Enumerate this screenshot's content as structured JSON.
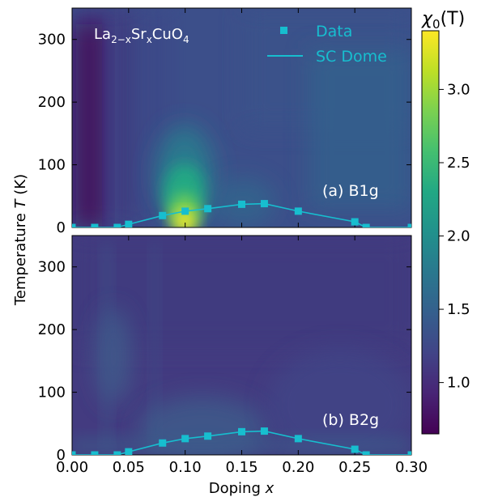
{
  "chart_data": {
    "type": "heatmap",
    "xlabel_text": "Doping ",
    "xlabel_var": "x",
    "ylabel_text": "Temperature ",
    "ylabel_var": "T",
    "ylabel_unit": " (K)",
    "xlim": [
      0.0,
      0.3
    ],
    "ylim": [
      0,
      350
    ],
    "x_ticks": [
      "0.00",
      "0.05",
      "0.10",
      "0.15",
      "0.20",
      "0.25",
      "0.30"
    ],
    "y_ticks": [
      "0",
      "100",
      "200",
      "300"
    ],
    "material_label": "La2−xSrxCuO4",
    "colorbar": {
      "label_base": "χ",
      "label_sub": "0",
      "label_arg": "(T)",
      "range": [
        0.65,
        3.4
      ],
      "ticks": [
        "1.0",
        "1.5",
        "2.0",
        "2.5",
        "3.0"
      ],
      "colormap": "viridis"
    },
    "legend": {
      "position": "top-right",
      "entries": [
        {
          "label": "Data",
          "marker": "square"
        },
        {
          "label": "SC Dome",
          "marker": "line"
        }
      ]
    },
    "series_color": "#17becf",
    "panels": [
      {
        "label": "(a) B1g"
      },
      {
        "label": "(b) B2g"
      }
    ],
    "sc_dome": {
      "x": [
        0.0,
        0.02,
        0.04,
        0.05,
        0.08,
        0.1,
        0.12,
        0.15,
        0.17,
        0.2,
        0.25,
        0.26,
        0.3
      ],
      "y": [
        0,
        0,
        0,
        5,
        19,
        26,
        30,
        37,
        38,
        26,
        9,
        0,
        0
      ]
    }
  }
}
